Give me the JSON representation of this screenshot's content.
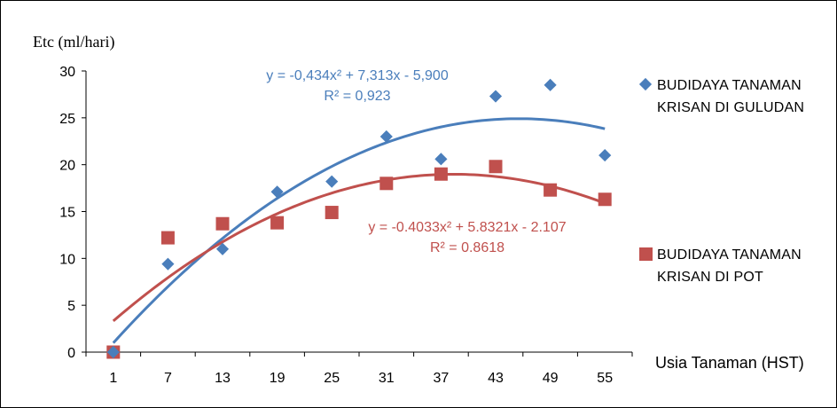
{
  "chart_data": {
    "type": "scatter",
    "ylabel": "Etc (ml/hari)",
    "xlabel": "Usia Tanaman (HST)",
    "categories": [
      "1",
      "7",
      "13",
      "19",
      "25",
      "31",
      "37",
      "43",
      "49",
      "55"
    ],
    "ylim": [
      0,
      30
    ],
    "yticks": [
      "0",
      "5",
      "10",
      "15",
      "20",
      "25",
      "30"
    ],
    "legend_position": "right",
    "series": [
      {
        "name_lines": [
          "BUDIDAYA TANAMAN",
          "KRISAN DI GULUDAN"
        ],
        "marker": "diamond",
        "color": "#4a7ebb",
        "values": [
          0,
          9.4,
          11.0,
          17.1,
          18.2,
          23.0,
          20.6,
          27.3,
          28.5,
          21.0
        ],
        "trend": {
          "a": -0.434,
          "b": 7.313,
          "c": -5.9
        },
        "equation": "y = -0,434x² + 7,313x - 5,900",
        "r2": "R² = 0,923"
      },
      {
        "name_lines": [
          "BUDIDAYA TANAMAN",
          "KRISAN DI POT"
        ],
        "marker": "square",
        "color": "#c0504d",
        "values": [
          0,
          12.2,
          13.7,
          13.8,
          14.9,
          18.0,
          19.0,
          19.8,
          17.3,
          16.3
        ],
        "trend": {
          "a": -0.4033,
          "b": 5.8321,
          "c": -2.107
        },
        "equation": "y = -0.4033x² + 5.8321x - 2.107",
        "r2": "R² = 0.8618"
      }
    ]
  }
}
